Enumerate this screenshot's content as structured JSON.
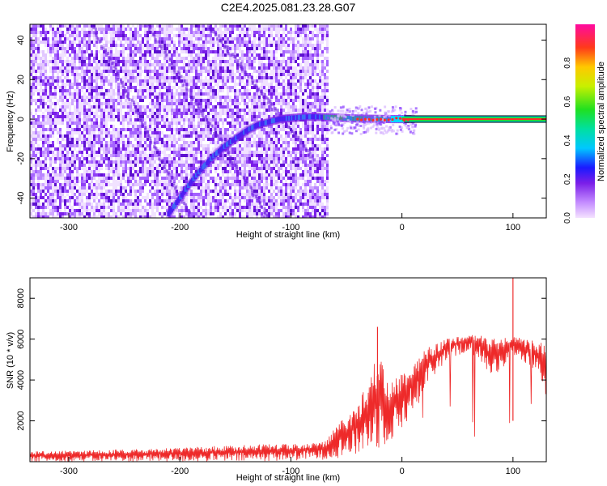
{
  "title": "C2E4.2025.081.23.28.G07",
  "chart_data": [
    {
      "type": "heatmap",
      "xlabel": "Height of straight line (km)",
      "ylabel": "Frequency (Hz)",
      "xlim": [
        -335,
        130
      ],
      "ylim": [
        -50,
        48
      ],
      "xticks": [
        -300,
        -200,
        -100,
        0,
        100
      ],
      "yticks": [
        -40,
        -20,
        0,
        20,
        40
      ],
      "noise_region_x": [
        -335,
        -68
      ],
      "main_signal_track": {
        "x": [
          -210,
          -200,
          -190,
          -180,
          -170,
          -160,
          -150,
          -140,
          -130,
          -120,
          -110,
          -100,
          -90,
          -80,
          -70,
          -60,
          -50,
          -40,
          -30,
          -20,
          -10,
          0,
          10,
          130
        ],
        "y": [
          -48,
          -40,
          -32,
          -25,
          -19,
          -14,
          -10,
          -6,
          -3,
          -1.5,
          0,
          0.5,
          1,
          1.2,
          1,
          0.8,
          0.5,
          0.3,
          0.2,
          0.1,
          0,
          0,
          0,
          0
        ]
      },
      "colorbar": {
        "label": "Normalized spectral amplitude",
        "range": [
          0,
          1
        ],
        "ticks": [
          "0.0",
          "0.2",
          "0.4",
          "0.6",
          "0.8"
        ]
      }
    },
    {
      "type": "line",
      "xlabel": "Height of straight line (km)",
      "ylabel": "SNR (10 * v/v)",
      "xlim": [
        -335,
        130
      ],
      "ylim": [
        0,
        9000
      ],
      "xticks": [
        -300,
        -200,
        -100,
        0,
        100
      ],
      "yticks": [
        2000,
        4000,
        6000,
        8000
      ],
      "color": "#ee2a2a",
      "envelope": {
        "x": [
          -335,
          -250,
          -150,
          -100,
          -70,
          -55,
          -40,
          -30,
          -20,
          -10,
          0,
          10,
          20,
          30,
          40,
          50,
          60,
          70,
          80,
          90,
          100,
          110,
          120,
          130
        ],
        "low": [
          0,
          0,
          0,
          50,
          100,
          200,
          300,
          500,
          600,
          1000,
          1500,
          2500,
          3500,
          4200,
          5000,
          5200,
          5400,
          5000,
          4000,
          4500,
          5200,
          4800,
          4500,
          3000
        ],
        "high": [
          500,
          600,
          800,
          900,
          1000,
          2000,
          2800,
          4200,
          5500,
          3800,
          4500,
          4800,
          5600,
          5800,
          6000,
          6200,
          6300,
          6200,
          6000,
          6100,
          6200,
          6000,
          5900,
          5800
        ]
      },
      "spikes": [
        {
          "x": -22,
          "y": 6600
        },
        {
          "x": 100,
          "y": 9000
        }
      ]
    }
  ]
}
